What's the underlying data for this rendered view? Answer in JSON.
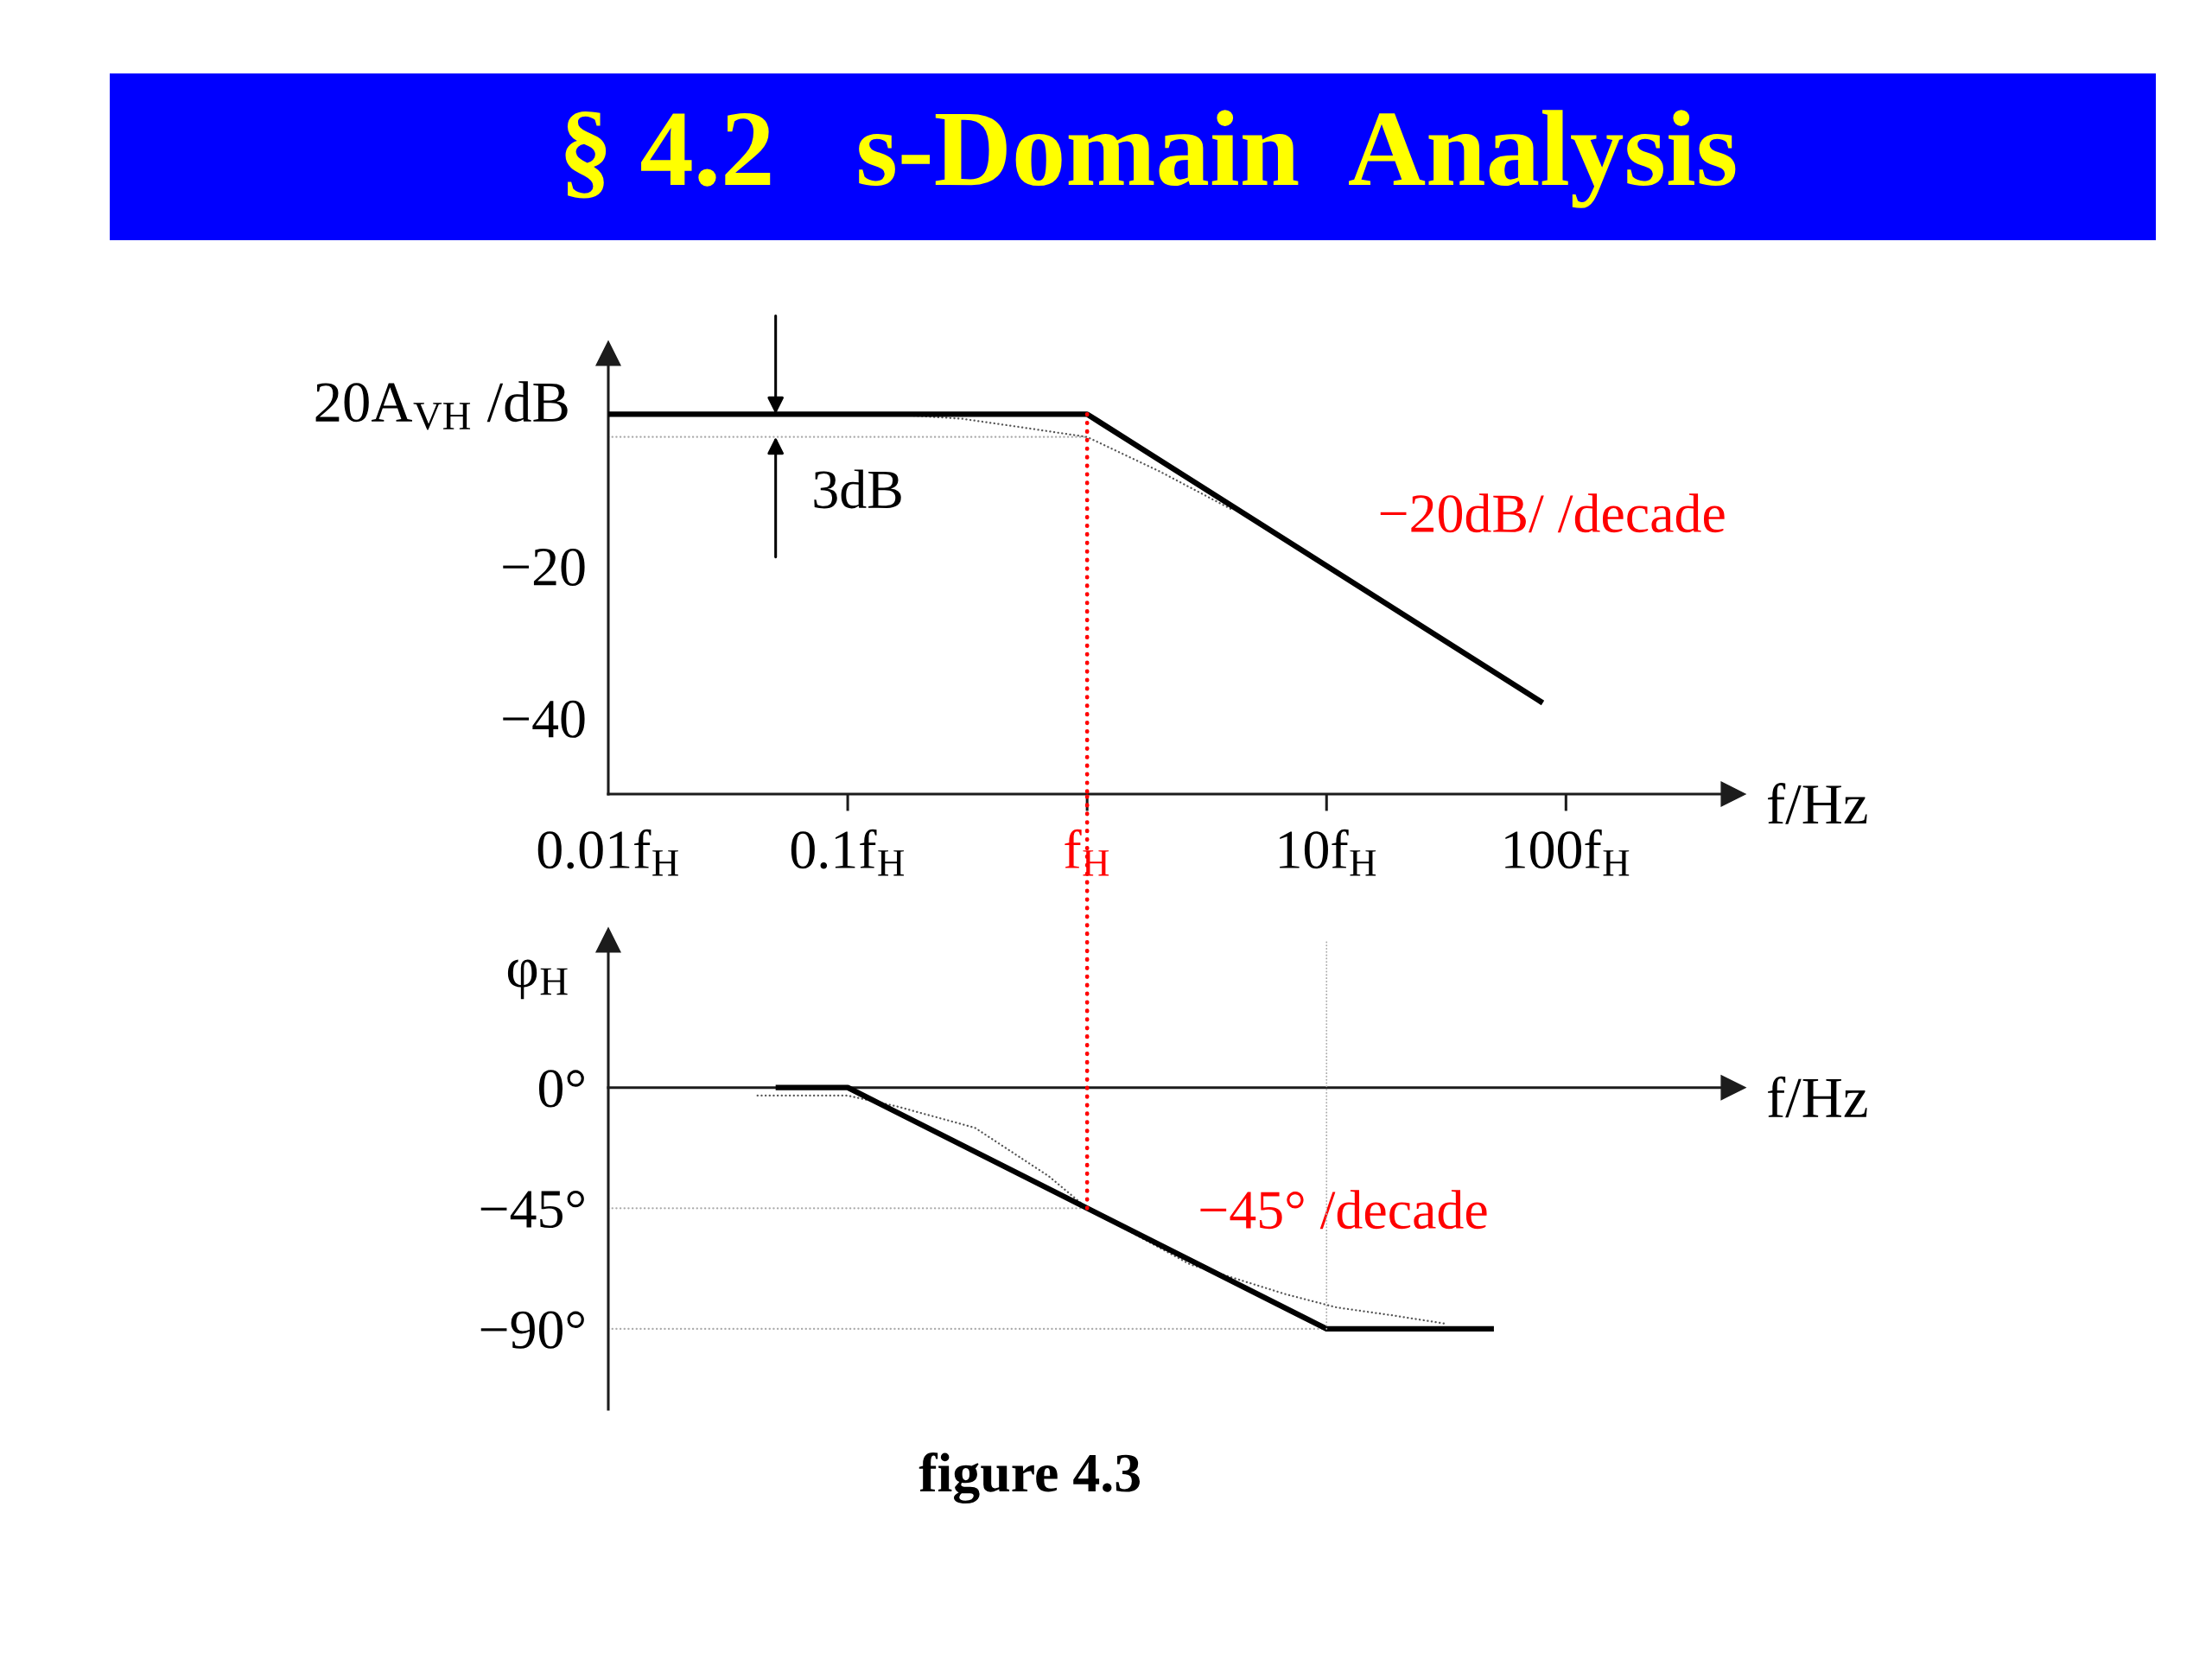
{
  "chart_data": [
    {
      "type": "line",
      "title": "§ 4.2   s-Domain  Analysis",
      "xlabel": "f/Hz",
      "ylabel": "20A$_{VH}$ /dB",
      "log": "x",
      "xlim": [
        0.01,
        500
      ],
      "xticks": [
        {
          "value": 0.01,
          "label": "0.01f$_{H}$"
        },
        {
          "value": 0.1,
          "label": "0.1f$_{H}$"
        },
        {
          "value": 1,
          "label": "f$_{H}$"
        },
        {
          "value": 10,
          "label": "10f$_{H}$"
        },
        {
          "value": 100,
          "label": "100f$_{H}$"
        }
      ],
      "ylim": [
        -50,
        8
      ],
      "yticks": [
        {
          "value": -20,
          "label": "−20"
        },
        {
          "value": -40,
          "label": "−40"
        }
      ],
      "series": [
        {
          "x": [
            0.01,
            1,
            80
          ],
          "values": [
            0,
            0,
            -38
          ],
          "color": "#000000",
          "line_style": "solid"
        },
        {
          "x": [
            0.15,
            0.3,
            0.5,
            1,
            2,
            4
          ],
          "values": [
            0,
            -0.6,
            -1.6,
            -3,
            -7.5,
            -12.5
          ],
          "color": "#555555",
          "line_style": "dotted"
        },
        {
          "x": [
            0.01,
            1
          ],
          "values": [
            -3,
            -3
          ],
          "color": "#aaaaaa",
          "line_style": "dotted"
        }
      ],
      "ref_lines": [
        {
          "axis": "x",
          "value": 1,
          "color": "#ff0000",
          "line_style": "dotted"
        }
      ],
      "annotations": [
        {
          "text": "3dB",
          "x": 0.05,
          "y": -3
        },
        "−20dB/ /decade"
      ]
    },
    {
      "type": "line",
      "xlabel": "f/Hz",
      "ylabel": "φ$_{H}$",
      "log": "x",
      "xlim": [
        0.01,
        500
      ],
      "tick_labels": "y",
      "ylim": [
        -120,
        55
      ],
      "yticks": [
        {
          "value": 0,
          "label": "0°"
        },
        {
          "value": -45,
          "label": "−45°"
        },
        {
          "value": -90,
          "label": "−90°"
        }
      ],
      "series": [
        {
          "x": [
            0.05,
            0.1,
            10,
            50
          ],
          "values": [
            0,
            0,
            -90,
            -90
          ],
          "color": "#000000",
          "line_style": "solid"
        },
        {
          "x": [
            0.042,
            0.1,
            0.16,
            0.34,
            0.69,
            1,
            2.7,
            6.7,
            11,
            19,
            31
          ],
          "values": [
            -3,
            -3,
            -7,
            -15,
            -33,
            -45,
            -66,
            -77,
            -82,
            -85,
            -88
          ],
          "color": "#555555",
          "line_style": "dotted"
        },
        {
          "x": [
            0.01,
            1
          ],
          "values": [
            -45,
            -45
          ],
          "color": "#aaaaaa",
          "line_style": "dotted"
        },
        {
          "x": [
            0.01,
            10
          ],
          "values": [
            -90,
            -90
          ],
          "color": "#aaaaaa",
          "line_style": "dotted"
        }
      ],
      "ref_lines": [
        {
          "axis": "x",
          "value": 1,
          "color": "#ff0000",
          "line_style": "dotted"
        },
        {
          "axis": "x",
          "value": 10,
          "color": "#aaaaaa",
          "line_style": "dotted"
        }
      ],
      "annotations": [
        "−45° /decade",
        "figure 4.3"
      ]
    }
  ]
}
